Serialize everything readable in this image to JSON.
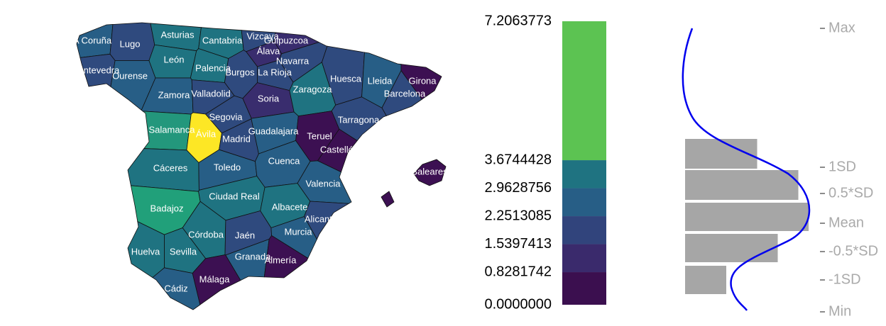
{
  "map": {
    "regions": [
      {
        "name": "A Coruña",
        "color": "#275e86"
      },
      {
        "name": "Lugo",
        "color": "#2f4a7e"
      },
      {
        "name": "Asturias",
        "color": "#1f7381"
      },
      {
        "name": "Cantabria",
        "color": "#1f7381"
      },
      {
        "name": "Vizcaya",
        "color": "#2f4a7e"
      },
      {
        "name": "Gulpuzcoa",
        "color": "#392d6e"
      },
      {
        "name": "Álava",
        "color": "#392d6e"
      },
      {
        "name": "Navarra",
        "color": "#2f4a7e"
      },
      {
        "name": "Pontevedra",
        "color": "#2f4a7e"
      },
      {
        "name": "Ourense",
        "color": "#275e86"
      },
      {
        "name": "León",
        "color": "#1f7381"
      },
      {
        "name": "Palencia",
        "color": "#1f7381"
      },
      {
        "name": "Burgos",
        "color": "#2f4a7e"
      },
      {
        "name": "La Rioja",
        "color": "#2f4a7e"
      },
      {
        "name": "Huesca",
        "color": "#2f4a7e"
      },
      {
        "name": "Lleida",
        "color": "#275e86"
      },
      {
        "name": "Girona",
        "color": "#3c1052"
      },
      {
        "name": "Barcelona",
        "color": "#2f4a7e"
      },
      {
        "name": "Zamora",
        "color": "#275e86"
      },
      {
        "name": "Valladolid",
        "color": "#2f4a7e"
      },
      {
        "name": "Soria",
        "color": "#392d6e"
      },
      {
        "name": "Zaragoza",
        "color": "#1f7381"
      },
      {
        "name": "Tarragona",
        "color": "#2f4a7e"
      },
      {
        "name": "Segovia",
        "color": "#2f4a7e"
      },
      {
        "name": "Salamanca",
        "color": "#23977c"
      },
      {
        "name": "Ávila",
        "color": "#fde725"
      },
      {
        "name": "Madrid",
        "color": "#2f4a7e"
      },
      {
        "name": "Guadalajara",
        "color": "#275e86"
      },
      {
        "name": "Teruel",
        "color": "#3c1052"
      },
      {
        "name": "Castellón",
        "color": "#3c1052"
      },
      {
        "name": "Cáceres",
        "color": "#1f7381"
      },
      {
        "name": "Toledo",
        "color": "#275e86"
      },
      {
        "name": "Cuenca",
        "color": "#275e86"
      },
      {
        "name": "Valencia",
        "color": "#275e86"
      },
      {
        "name": "Badajoz",
        "color": "#21a07a"
      },
      {
        "name": "Ciudad Real",
        "color": "#1f7381"
      },
      {
        "name": "Albacete",
        "color": "#1f7381"
      },
      {
        "name": "Alicante",
        "color": "#2f4a7e"
      },
      {
        "name": "Córdoba",
        "color": "#1f7381"
      },
      {
        "name": "Jaén",
        "color": "#2f4a7e"
      },
      {
        "name": "Murcia",
        "color": "#275e86"
      },
      {
        "name": "Huelva",
        "color": "#1f7381"
      },
      {
        "name": "Sevilla",
        "color": "#1f7381"
      },
      {
        "name": "Granada",
        "color": "#275e86"
      },
      {
        "name": "Almería",
        "color": "#3c1052"
      },
      {
        "name": "Cádiz",
        "color": "#275e86"
      },
      {
        "name": "Málaga",
        "color": "#3c1052"
      },
      {
        "name": "Baleares",
        "color": "#3c1052"
      }
    ]
  },
  "legend": {
    "ylim": [
      0,
      7.2063773
    ],
    "breaks": [
      {
        "value": 0,
        "label": "0.0000000"
      },
      {
        "value": 0.8281742,
        "label": "0.8281742"
      },
      {
        "value": 1.5397413,
        "label": "1.5397413"
      },
      {
        "value": 2.2513085,
        "label": "2.2513085"
      },
      {
        "value": 2.9628756,
        "label": "2.9628756"
      },
      {
        "value": 3.6744428,
        "label": "3.6744428"
      },
      {
        "value": 7.2063773,
        "label": "7.2063773"
      }
    ],
    "colors": [
      "#3b0f4f",
      "#3a2a6c",
      "#31447c",
      "#275e86",
      "#1f7381",
      "#5cc352"
    ]
  },
  "histogram": {
    "counts": [
      7,
      11,
      12,
      9,
      4
    ],
    "color": "#a6a6a6",
    "curve_color": "#0000ee",
    "stats": [
      "Max",
      "1SD",
      "0.5*SD",
      "Mean",
      "-0.5*SD",
      "-1SD",
      "Min"
    ]
  }
}
